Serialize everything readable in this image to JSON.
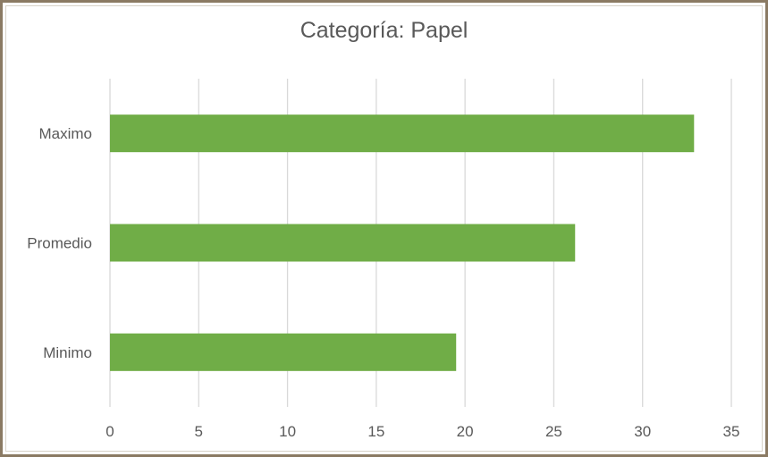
{
  "chart_data": {
    "type": "bar",
    "orientation": "horizontal",
    "title": "Categoría: Papel",
    "categories": [
      "Maximo",
      "Promedio",
      "Minimo"
    ],
    "values": [
      32.9,
      26.2,
      19.5
    ],
    "xlim": [
      0,
      35
    ],
    "xticks": [
      "0",
      "5",
      "10",
      "15",
      "20",
      "25",
      "30",
      "35"
    ],
    "xlabel": "",
    "ylabel": "",
    "grid": "vertical",
    "legend": "none",
    "bar_color": "#70ad47",
    "grid_color": "#d9d9d9",
    "text_color": "#595959"
  }
}
